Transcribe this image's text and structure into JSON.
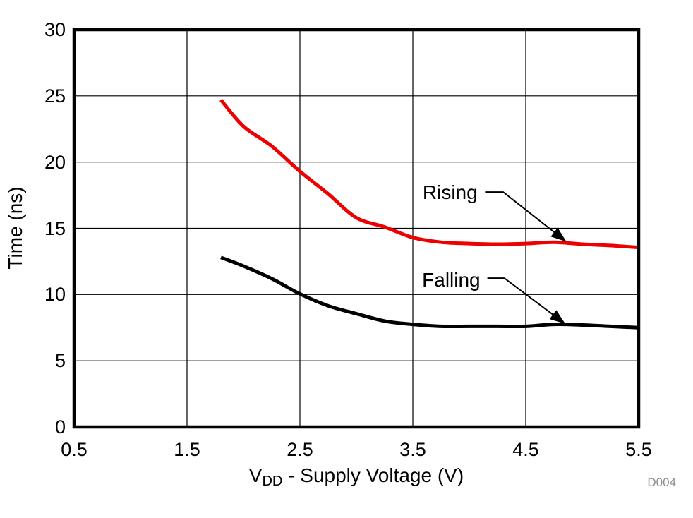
{
  "figure": {
    "watermark": "D004",
    "background": "#ffffff",
    "grid_color": "#000000",
    "frame_color": "#000000"
  },
  "chart_data": {
    "type": "line",
    "title": "",
    "xlabel": {
      "pre": "V",
      "sub": "DD",
      "rest": " - Supply Voltage (V)"
    },
    "ylabel": "Time (ns)",
    "xlim": [
      0.5,
      5.5
    ],
    "ylim": [
      0,
      30
    ],
    "xticks": [
      0.5,
      1.5,
      2.5,
      3.5,
      4.5,
      5.5
    ],
    "yticks": [
      0,
      5,
      10,
      15,
      20,
      25,
      30
    ],
    "grid": true,
    "legend_position": "inline-callouts",
    "x": [
      1.8,
      2.0,
      2.25,
      2.5,
      2.75,
      3.0,
      3.25,
      3.5,
      3.75,
      4.0,
      4.25,
      4.5,
      4.75,
      5.0,
      5.25,
      5.5
    ],
    "series": [
      {
        "name": "Rising",
        "color": "#ee0000",
        "values": [
          24.7,
          22.7,
          21.2,
          19.3,
          17.6,
          15.8,
          15.1,
          14.3,
          13.95,
          13.85,
          13.8,
          13.85,
          13.95,
          13.8,
          13.7,
          13.55
        ]
      },
      {
        "name": "Falling",
        "color": "#000000",
        "values": [
          12.8,
          12.15,
          11.2,
          10.05,
          9.15,
          8.55,
          8.0,
          7.75,
          7.6,
          7.6,
          7.6,
          7.6,
          7.75,
          7.7,
          7.6,
          7.5
        ]
      }
    ],
    "annotations": [
      {
        "label": "Rising",
        "text_x": 3.83,
        "text_y": 17.7,
        "line_start_x": 4.14,
        "line_start_y": 17.74,
        "elbow_x": 4.3,
        "elbow_y": 17.74,
        "tip_x": 4.85,
        "tip_y": 14.05
      },
      {
        "label": "Falling",
        "text_x": 3.84,
        "text_y": 11.1,
        "line_start_x": 4.16,
        "line_start_y": 11.24,
        "elbow_x": 4.31,
        "elbow_y": 11.24,
        "tip_x": 4.84,
        "tip_y": 7.85
      }
    ]
  }
}
